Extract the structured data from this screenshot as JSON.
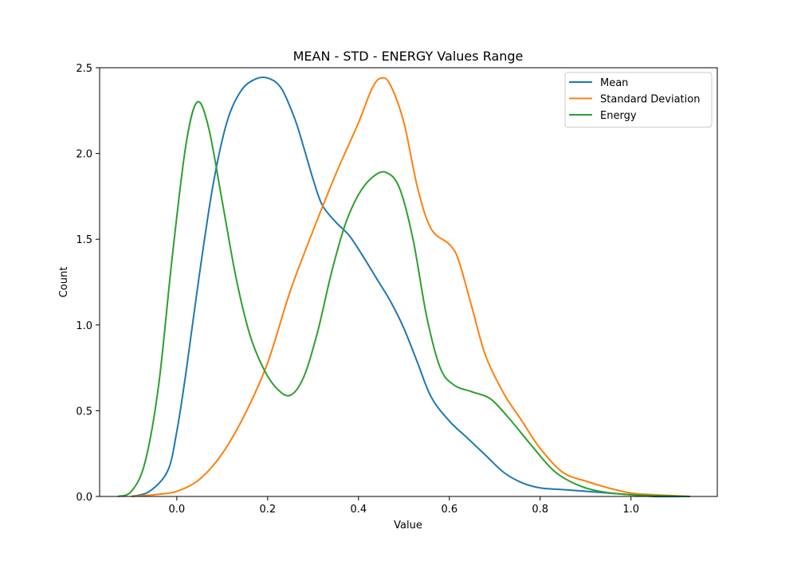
{
  "chart_data": {
    "type": "line",
    "title": "MEAN - STD - ENERGY Values Range",
    "xlabel": "Value",
    "ylabel": "Count",
    "xlim": [
      -0.17,
      1.19
    ],
    "ylim": [
      0.0,
      2.5
    ],
    "xticks": [
      0.0,
      0.2,
      0.4,
      0.6,
      0.8,
      1.0
    ],
    "xtick_labels": [
      "0.0",
      "0.2",
      "0.4",
      "0.6",
      "0.8",
      "1.0"
    ],
    "yticks": [
      0.0,
      0.5,
      1.0,
      1.5,
      2.0,
      2.5
    ],
    "ytick_labels": [
      "0.0",
      "0.5",
      "1.0",
      "1.5",
      "2.0",
      "2.5"
    ],
    "grid": false,
    "legend_position": "top-right",
    "series": [
      {
        "name": "Mean",
        "color": "#1f77b4",
        "points": [
          [
            -0.1,
            0.0
          ],
          [
            -0.06,
            0.03
          ],
          [
            -0.02,
            0.15
          ],
          [
            0.0,
            0.38
          ],
          [
            0.02,
            0.72
          ],
          [
            0.05,
            1.3
          ],
          [
            0.08,
            1.82
          ],
          [
            0.11,
            2.18
          ],
          [
            0.14,
            2.36
          ],
          [
            0.17,
            2.43
          ],
          [
            0.2,
            2.44
          ],
          [
            0.23,
            2.38
          ],
          [
            0.26,
            2.2
          ],
          [
            0.28,
            2.03
          ],
          [
            0.3,
            1.85
          ],
          [
            0.32,
            1.7
          ],
          [
            0.35,
            1.6
          ],
          [
            0.38,
            1.52
          ],
          [
            0.41,
            1.4
          ],
          [
            0.44,
            1.27
          ],
          [
            0.47,
            1.14
          ],
          [
            0.5,
            0.98
          ],
          [
            0.53,
            0.78
          ],
          [
            0.56,
            0.58
          ],
          [
            0.6,
            0.44
          ],
          [
            0.64,
            0.34
          ],
          [
            0.68,
            0.24
          ],
          [
            0.72,
            0.14
          ],
          [
            0.76,
            0.08
          ],
          [
            0.8,
            0.05
          ],
          [
            0.85,
            0.04
          ],
          [
            0.9,
            0.03
          ],
          [
            0.95,
            0.02
          ],
          [
            1.0,
            0.01
          ],
          [
            1.05,
            0.0
          ],
          [
            1.13,
            0.0
          ]
        ]
      },
      {
        "name": "Standard Deviation",
        "color": "#ff7f0e",
        "points": [
          [
            -0.1,
            0.0
          ],
          [
            -0.05,
            0.01
          ],
          [
            0.0,
            0.03
          ],
          [
            0.05,
            0.1
          ],
          [
            0.1,
            0.25
          ],
          [
            0.15,
            0.48
          ],
          [
            0.2,
            0.78
          ],
          [
            0.25,
            1.2
          ],
          [
            0.3,
            1.55
          ],
          [
            0.35,
            1.88
          ],
          [
            0.4,
            2.18
          ],
          [
            0.43,
            2.38
          ],
          [
            0.45,
            2.44
          ],
          [
            0.47,
            2.4
          ],
          [
            0.5,
            2.18
          ],
          [
            0.53,
            1.8
          ],
          [
            0.56,
            1.56
          ],
          [
            0.6,
            1.47
          ],
          [
            0.62,
            1.38
          ],
          [
            0.65,
            1.1
          ],
          [
            0.68,
            0.82
          ],
          [
            0.72,
            0.6
          ],
          [
            0.76,
            0.44
          ],
          [
            0.8,
            0.28
          ],
          [
            0.85,
            0.14
          ],
          [
            0.9,
            0.09
          ],
          [
            0.95,
            0.05
          ],
          [
            1.0,
            0.02
          ],
          [
            1.05,
            0.01
          ],
          [
            1.13,
            0.0
          ]
        ]
      },
      {
        "name": "Energy",
        "color": "#2ca02c",
        "points": [
          [
            -0.13,
            0.0
          ],
          [
            -0.1,
            0.03
          ],
          [
            -0.07,
            0.2
          ],
          [
            -0.04,
            0.65
          ],
          [
            -0.01,
            1.4
          ],
          [
            0.02,
            2.05
          ],
          [
            0.045,
            2.3
          ],
          [
            0.07,
            2.15
          ],
          [
            0.1,
            1.72
          ],
          [
            0.13,
            1.28
          ],
          [
            0.16,
            0.95
          ],
          [
            0.19,
            0.75
          ],
          [
            0.22,
            0.63
          ],
          [
            0.25,
            0.59
          ],
          [
            0.28,
            0.7
          ],
          [
            0.31,
            0.96
          ],
          [
            0.34,
            1.3
          ],
          [
            0.37,
            1.58
          ],
          [
            0.4,
            1.76
          ],
          [
            0.43,
            1.86
          ],
          [
            0.46,
            1.89
          ],
          [
            0.49,
            1.8
          ],
          [
            0.52,
            1.5
          ],
          [
            0.55,
            1.05
          ],
          [
            0.58,
            0.75
          ],
          [
            0.61,
            0.65
          ],
          [
            0.65,
            0.61
          ],
          [
            0.69,
            0.57
          ],
          [
            0.73,
            0.46
          ],
          [
            0.78,
            0.3
          ],
          [
            0.83,
            0.15
          ],
          [
            0.88,
            0.07
          ],
          [
            0.93,
            0.03
          ],
          [
            1.0,
            0.01
          ],
          [
            1.13,
            0.0
          ]
        ]
      }
    ]
  }
}
